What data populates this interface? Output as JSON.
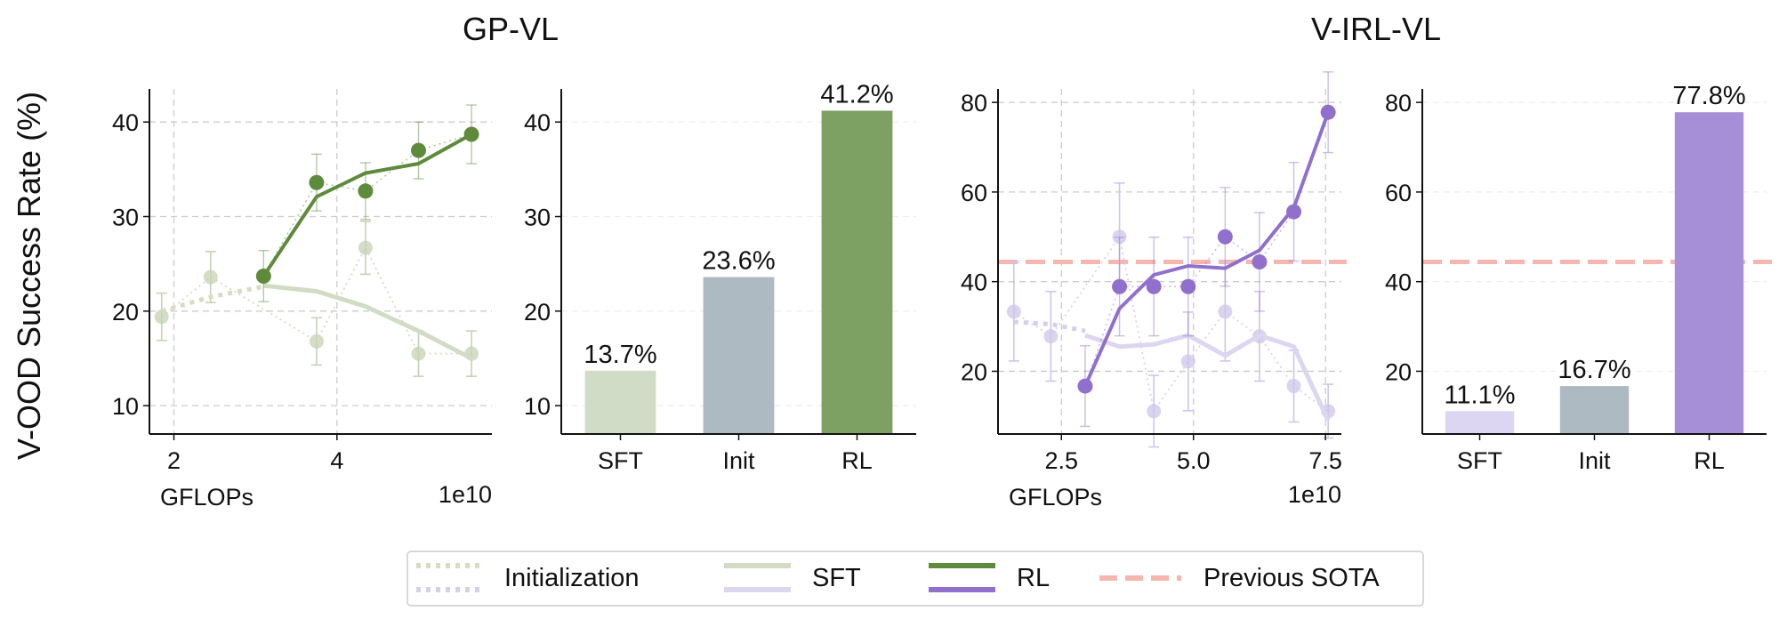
{
  "figure": {
    "ylabel": "V-OOD Success Rate (%)",
    "group_titles": [
      "GP-VL",
      "V-IRL-VL"
    ],
    "legend": [
      {
        "label": "Initialization",
        "style": "dotted",
        "colors": [
          "#d9dcc2",
          "#d4d0ea"
        ]
      },
      {
        "label": "SFT",
        "style": "solid-light",
        "colors": [
          "#d2dcc4",
          "#dcd6f0"
        ]
      },
      {
        "label": "RL",
        "style": "solid",
        "colors": [
          "#5e8a3c",
          "#9070cc"
        ]
      },
      {
        "label": "Previous SOTA",
        "style": "dashed",
        "colors": [
          "#f7b5b0"
        ]
      }
    ]
  },
  "chart_data": [
    {
      "type": "line",
      "group": "GP-VL",
      "xlabel": "GFLOPs",
      "x_exponent": "1e10",
      "xlim": [
        1.7,
        5.9
      ],
      "ylim": [
        7,
        43.5
      ],
      "xticks": [
        2,
        4
      ],
      "xtick_labels": [
        "2",
        "4"
      ],
      "yticks": [
        10,
        20,
        30,
        40
      ],
      "ytick_labels": [
        "10",
        "20",
        "30",
        "40"
      ],
      "grid": true,
      "colors": {
        "rl": "#5e8a3c",
        "sft": "#d2dcc4",
        "init": "#d9dcc2",
        "sft_point": "#c5d3b3"
      },
      "series": [
        {
          "name": "Initialization",
          "style": "dotted",
          "x": [
            1.85,
            2.45,
            3.1
          ],
          "y": [
            20.0,
            21.5,
            22.6
          ]
        },
        {
          "name": "SFT",
          "style": "solid-light",
          "x": [
            3.1,
            3.75,
            4.35,
            5.0,
            5.65
          ],
          "y": [
            22.7,
            22.1,
            20.5,
            17.9,
            15.0
          ],
          "points": {
            "x": [
              1.85,
              2.45,
              3.75,
              4.35,
              5.0,
              5.65
            ],
            "y": [
              19.4,
              23.6,
              16.8,
              26.7,
              15.5,
              15.5
            ],
            "err": [
              2.5,
              2.7,
              2.5,
              2.8,
              2.4,
              2.4
            ]
          }
        },
        {
          "name": "RL",
          "style": "solid",
          "x": [
            3.1,
            3.75,
            4.35,
            5.0,
            5.65
          ],
          "y": [
            23.7,
            32.1,
            34.6,
            35.6,
            38.7
          ],
          "points": {
            "x": [
              3.1,
              3.75,
              4.35,
              5.0,
              5.65
            ],
            "y": [
              23.7,
              33.6,
              32.7,
              37.0,
              38.7
            ],
            "err": [
              2.7,
              3.0,
              3.0,
              3.0,
              3.1
            ]
          }
        }
      ]
    },
    {
      "type": "bar",
      "group": "GP-VL",
      "categories": [
        "SFT",
        "Init",
        "RL"
      ],
      "values": [
        13.7,
        23.6,
        41.2
      ],
      "data_labels": [
        "13.7%",
        "23.6%",
        "41.2%"
      ],
      "colors": [
        "#d1dcc6",
        "#adbac2",
        "#7ca163"
      ],
      "ylim": [
        7,
        43.5
      ],
      "yticks": [
        10,
        20,
        30,
        40
      ],
      "ytick_labels": [
        "10",
        "20",
        "30",
        "40"
      ]
    },
    {
      "type": "line",
      "group": "V-IRL-VL",
      "xlabel": "GFLOPs",
      "x_exponent": "1e10",
      "xlim": [
        1.3,
        7.8
      ],
      "ylim": [
        6,
        83
      ],
      "xticks": [
        2.5,
        5.0,
        7.5
      ],
      "xtick_labels": [
        "2.5",
        "5.0",
        "7.5"
      ],
      "yticks": [
        20,
        40,
        60,
        80
      ],
      "ytick_labels": [
        "20",
        "40",
        "60",
        "80"
      ],
      "grid": true,
      "reference_line": {
        "name": "Previous SOTA",
        "y": 44.4
      },
      "colors": {
        "rl": "#9070cc",
        "sft": "#dcd6f0",
        "init": "#d4d0ea",
        "sft_point": "#cfc5ea"
      },
      "series": [
        {
          "name": "Initialization",
          "style": "dotted",
          "x": [
            1.6,
            2.3,
            2.95
          ],
          "y": [
            31.0,
            30.5,
            29.0
          ]
        },
        {
          "name": "SFT",
          "style": "solid-light",
          "x": [
            2.95,
            3.6,
            4.25,
            4.9,
            5.6,
            6.25,
            6.9,
            7.55
          ],
          "y": [
            28.0,
            25.5,
            26.0,
            28.0,
            23.5,
            28.0,
            25.5,
            9.0
          ],
          "points": {
            "x": [
              1.6,
              2.3,
              3.6,
              4.25,
              4.9,
              5.6,
              6.25,
              6.9,
              7.55
            ],
            "y": [
              33.3,
              27.8,
              50.0,
              11.1,
              22.2,
              33.3,
              27.8,
              16.7,
              11.1
            ],
            "err": [
              11,
              10,
              12,
              8,
              11,
              11,
              10,
              8,
              6
            ]
          }
        },
        {
          "name": "RL",
          "style": "solid",
          "x": [
            2.95,
            3.6,
            4.25,
            4.9,
            5.6,
            6.25,
            6.9,
            7.55
          ],
          "y": [
            16.7,
            34.0,
            41.5,
            43.5,
            43.0,
            47.0,
            56.5,
            77.8
          ],
          "points": {
            "x": [
              2.95,
              3.6,
              4.25,
              4.9,
              5.6,
              6.25,
              6.9,
              7.55
            ],
            "y": [
              16.7,
              38.9,
              38.9,
              38.9,
              50.0,
              44.4,
              55.6,
              77.8
            ],
            "err": [
              9,
              11,
              11,
              11,
              11,
              11,
              11,
              9
            ]
          }
        }
      ]
    },
    {
      "type": "bar",
      "group": "V-IRL-VL",
      "categories": [
        "SFT",
        "Init",
        "RL"
      ],
      "values": [
        11.1,
        16.7,
        77.8
      ],
      "data_labels": [
        "11.1%",
        "16.7%",
        "77.8%"
      ],
      "colors": [
        "#ddd6f2",
        "#adbac2",
        "#a68fd6"
      ],
      "ylim": [
        6,
        83
      ],
      "yticks": [
        20,
        40,
        60,
        80
      ],
      "ytick_labels": [
        "20",
        "40",
        "60",
        "80"
      ],
      "reference_line": {
        "name": "Previous SOTA",
        "y": 44.4
      }
    }
  ]
}
